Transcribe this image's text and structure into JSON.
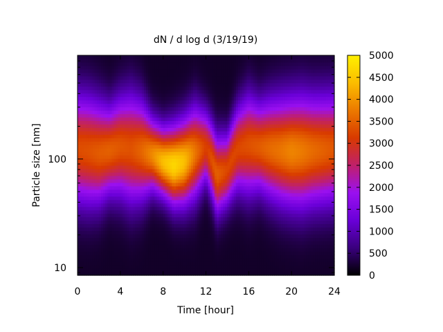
{
  "chart_data": {
    "type": "heatmap",
    "title": "dN / d log d (3/19/19)",
    "xlabel": "Time [hour]",
    "ylabel": "Particle size [nm]",
    "xlim": [
      0,
      24
    ],
    "ylim": [
      8.5,
      900
    ],
    "y_scale": "log",
    "x_ticks": [
      0,
      4,
      8,
      12,
      16,
      20,
      24
    ],
    "y_ticks": [
      10,
      100
    ],
    "colorbar": {
      "min": 0,
      "max": 5000,
      "ticks": [
        0,
        500,
        1000,
        1500,
        2000,
        2500,
        3000,
        3500,
        4000,
        4500,
        5000
      ],
      "colors": [
        "#000000",
        "#3a007e",
        "#6a00d8",
        "#9a10f0",
        "#c0206a",
        "#d83a00",
        "#ec7a00",
        "#fbbd00",
        "#fff000"
      ]
    },
    "grid": false,
    "time_hours": [
      0,
      1,
      2,
      3,
      4,
      5,
      6,
      7,
      8,
      9,
      10,
      11,
      12,
      13,
      14,
      15,
      16,
      17,
      18,
      19,
      20,
      21,
      22,
      23,
      24
    ],
    "peak_diameter_nm": [
      125,
      120,
      115,
      120,
      130,
      125,
      120,
      110,
      95,
      88,
      95,
      115,
      130,
      72,
      80,
      125,
      135,
      130,
      125,
      120,
      118,
      118,
      120,
      122,
      125
    ],
    "peak_concentration": [
      3100,
      3150,
      3250,
      3300,
      3200,
      3150,
      3350,
      3700,
      4200,
      4500,
      4200,
      3500,
      2950,
      3300,
      3050,
      3050,
      3150,
      3250,
      3400,
      3500,
      3650,
      3550,
      3400,
      3300,
      3200
    ],
    "peak_log_width": [
      0.33,
      0.33,
      0.31,
      0.27,
      0.3,
      0.33,
      0.3,
      0.22,
      0.21,
      0.24,
      0.26,
      0.28,
      0.22,
      0.24,
      0.22,
      0.26,
      0.3,
      0.27,
      0.3,
      0.32,
      0.33,
      0.34,
      0.33,
      0.33,
      0.33
    ]
  }
}
